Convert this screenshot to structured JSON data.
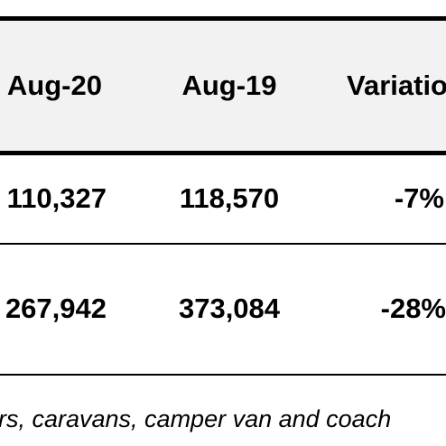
{
  "table": {
    "columns": [
      "Aug-20",
      "Aug-19",
      "Variation"
    ],
    "rows": [
      [
        "110,327",
        "118,570",
        "-7%"
      ],
      [
        "267,942",
        "373,084",
        "-28%"
      ]
    ]
  },
  "footnote": "rs, caravans, camper van and coach"
}
